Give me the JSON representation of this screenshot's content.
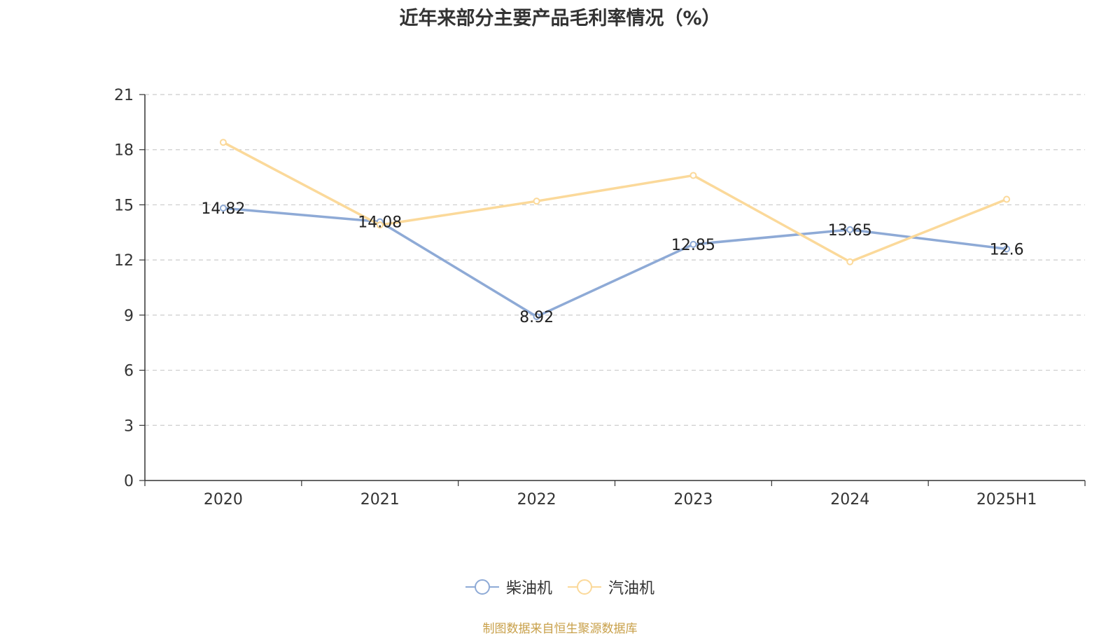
{
  "chart_data": {
    "type": "line",
    "title": "近年来部分主要产品毛利率情况（%）",
    "categories": [
      "2020",
      "2021",
      "2022",
      "2023",
      "2024",
      "2025H1"
    ],
    "ylim": [
      0,
      21
    ],
    "yticks": [
      0,
      3,
      6,
      9,
      12,
      15,
      18,
      21
    ],
    "grid": true,
    "legend_position": "bottom",
    "series": [
      {
        "name": "柴油机",
        "color": "#8eaad6",
        "values": [
          14.82,
          14.08,
          8.92,
          12.85,
          13.65,
          12.6
        ],
        "labels": [
          "14.82",
          "14.08",
          "8.92",
          "12.85",
          "13.65",
          "12.6"
        ]
      },
      {
        "name": "汽油机",
        "color": "#fbd99a",
        "values": [
          18.4,
          13.9,
          15.2,
          16.6,
          11.9,
          15.3
        ]
      }
    ]
  },
  "source_note": "制图数据来自恒生聚源数据库"
}
